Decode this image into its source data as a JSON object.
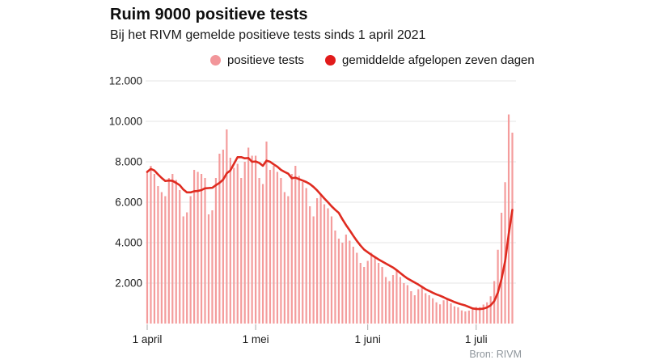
{
  "header": {
    "title": "Ruim 9000 positieve tests",
    "subtitle": "Bij het RIVM gemelde positieve tests sinds 1 april 2021"
  },
  "source": {
    "label": "Bron: RIVM"
  },
  "colors": {
    "background": "#ffffff",
    "grid": "#ebebeb",
    "tick_mark": "#a8a8a8",
    "axis_text": "#1d1d1d",
    "title_text": "#0e0e0e",
    "source_text": "#8e959b",
    "bar": "#f49c9c",
    "line": "#df2b20",
    "legend_dot_bars": "#f2969a",
    "legend_dot_line": "#e11b1b"
  },
  "chart_data": {
    "type": "bar",
    "title": "Ruim 9000 positieve tests",
    "subtitle": "Bij het RIVM gemelde positieve tests sinds 1 april 2021",
    "xlabel": "",
    "ylabel": "",
    "ylim": [
      0,
      12000
    ],
    "grid": "horizontal",
    "legend_position": "top-center",
    "start_date": "2021-04-01",
    "end_date": "2021-07-11",
    "x_ticks": [
      {
        "label": "1 april",
        "day": 0
      },
      {
        "label": "1 mei",
        "day": 30
      },
      {
        "label": "1 juni",
        "day": 61
      },
      {
        "label": "1 juli",
        "day": 91
      }
    ],
    "y_ticks": [
      {
        "value": 2000,
        "label": "2.000"
      },
      {
        "value": 4000,
        "label": "4.000"
      },
      {
        "value": 6000,
        "label": "6.000"
      },
      {
        "value": 8000,
        "label": "8.000"
      },
      {
        "value": 10000,
        "label": "10.000"
      },
      {
        "value": 12000,
        "label": "12.000"
      }
    ],
    "series": [
      {
        "name": "positieve tests",
        "type": "bar",
        "color": "#f49c9c",
        "values": [
          7500,
          7800,
          7400,
          6800,
          6500,
          6300,
          7200,
          7400,
          7100,
          6600,
          5300,
          5500,
          6300,
          7600,
          7500,
          7400,
          7200,
          5400,
          5600,
          7200,
          8400,
          8600,
          9600,
          8200,
          7700,
          7900,
          7200,
          8000,
          8700,
          8300,
          8300,
          7200,
          6900,
          9000,
          7600,
          7800,
          7500,
          7200,
          6500,
          6300,
          7400,
          7800,
          7300,
          7000,
          6700,
          5800,
          5300,
          6200,
          6400,
          5900,
          5700,
          5300,
          4600,
          4200,
          4000,
          4400,
          4100,
          3800,
          3500,
          3000,
          2800,
          3100,
          3500,
          3300,
          3000,
          2800,
          2300,
          2100,
          2400,
          2600,
          2300,
          2000,
          1900,
          1600,
          1400,
          1700,
          1800,
          1500,
          1400,
          1250,
          1050,
          950,
          1150,
          1200,
          1000,
          850,
          800,
          650,
          600,
          640,
          700,
          820,
          810,
          940,
          1050,
          1350,
          2100,
          3650,
          5480,
          6990,
          10340,
          9440
        ]
      },
      {
        "name": "gemiddelde afgelopen zeven dagen",
        "type": "line",
        "color": "#df2b20",
        "derivation": "7-day trailing average of the daily positive-test values",
        "end_value": 5620
      }
    ]
  }
}
